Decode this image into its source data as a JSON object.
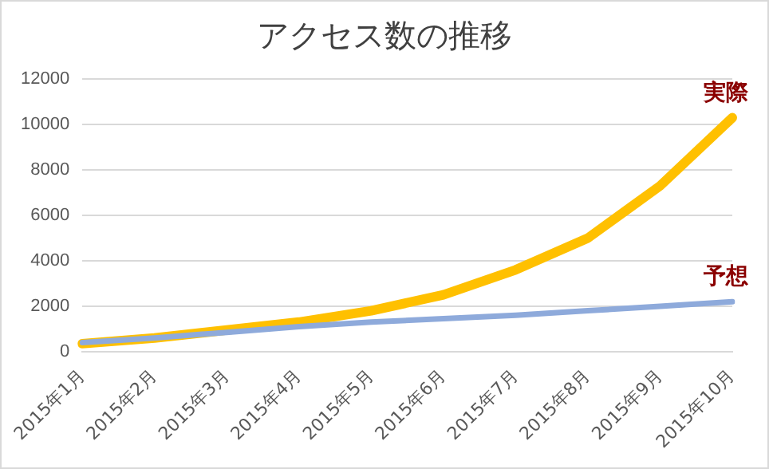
{
  "chart_data": {
    "type": "line",
    "title": "アクセス数の推移",
    "categories": [
      "2015年1月",
      "2015年2月",
      "2015年3月",
      "2015年4月",
      "2015年5月",
      "2015年6月",
      "2015年7月",
      "2015年8月",
      "2015年9月",
      "2015年10月"
    ],
    "series": [
      {
        "name": "実際",
        "color": "#ffc000",
        "values": [
          350,
          600,
          950,
          1300,
          1800,
          2500,
          3600,
          5000,
          7300,
          10300
        ]
      },
      {
        "name": "予想",
        "color": "#8eaadb",
        "values": [
          400,
          600,
          850,
          1100,
          1300,
          1450,
          1600,
          1800,
          2000,
          2200
        ]
      }
    ],
    "ylim": [
      0,
      12000
    ],
    "yticks": [
      0,
      2000,
      4000,
      6000,
      8000,
      10000,
      12000
    ],
    "grid": "y",
    "legend": false,
    "marker": "none",
    "line_style": "solid"
  }
}
